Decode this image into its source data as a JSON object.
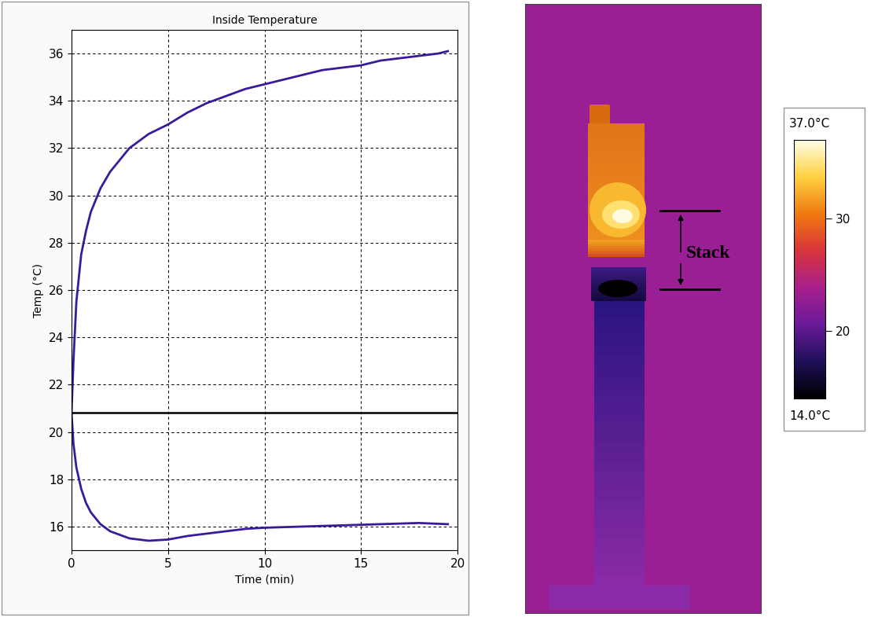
{
  "chart_data": [
    {
      "type": "line",
      "title": "Inside Temperature",
      "x_label": "Time (min)",
      "y_label": "Temp (°C)",
      "xlim": [
        0,
        20
      ],
      "ylim": [
        15,
        37
      ],
      "xticks": [
        0,
        5,
        10,
        15,
        20
      ],
      "yticks": [
        16,
        18,
        20,
        22,
        24,
        26,
        28,
        30,
        32,
        34,
        36
      ],
      "grid": true,
      "series": [
        {
          "color": "#3a1a9c",
          "x": [
            0,
            0.1,
            0.25,
            0.5,
            0.75,
            1,
            1.5,
            2,
            3,
            4,
            5,
            6,
            7,
            8,
            9,
            10,
            11,
            12,
            13,
            14,
            15,
            16,
            17,
            18,
            19,
            19.5
          ],
          "values": [
            20.8,
            23,
            25.5,
            27.5,
            28.5,
            29.3,
            30.3,
            31,
            32,
            32.6,
            33,
            33.5,
            33.9,
            34.2,
            34.5,
            34.7,
            34.9,
            35.1,
            35.3,
            35.4,
            35.5,
            35.7,
            35.8,
            35.9,
            36,
            36.1
          ]
        },
        {
          "color": "#3a1a9c",
          "x": [
            0,
            0.1,
            0.25,
            0.5,
            0.75,
            1,
            1.5,
            2,
            3,
            4,
            5,
            6,
            7,
            8,
            9,
            10,
            12,
            14,
            16,
            18,
            19.5
          ],
          "values": [
            20.8,
            19.5,
            18.5,
            17.6,
            17,
            16.6,
            16.1,
            15.8,
            15.5,
            15.4,
            15.45,
            15.6,
            15.7,
            15.8,
            15.9,
            15.95,
            16,
            16.05,
            16.1,
            16.15,
            16.1
          ]
        },
        {
          "color": "#000000",
          "x": [
            0,
            20
          ],
          "values": [
            20.8,
            20.8
          ]
        }
      ]
    },
    {
      "type": "thermal_image",
      "annotation": "Stack",
      "zlim": [
        14,
        37
      ],
      "zticks": [
        20,
        30
      ],
      "zlim_labels": [
        "14.0°C",
        "37.0°C"
      ]
    }
  ]
}
